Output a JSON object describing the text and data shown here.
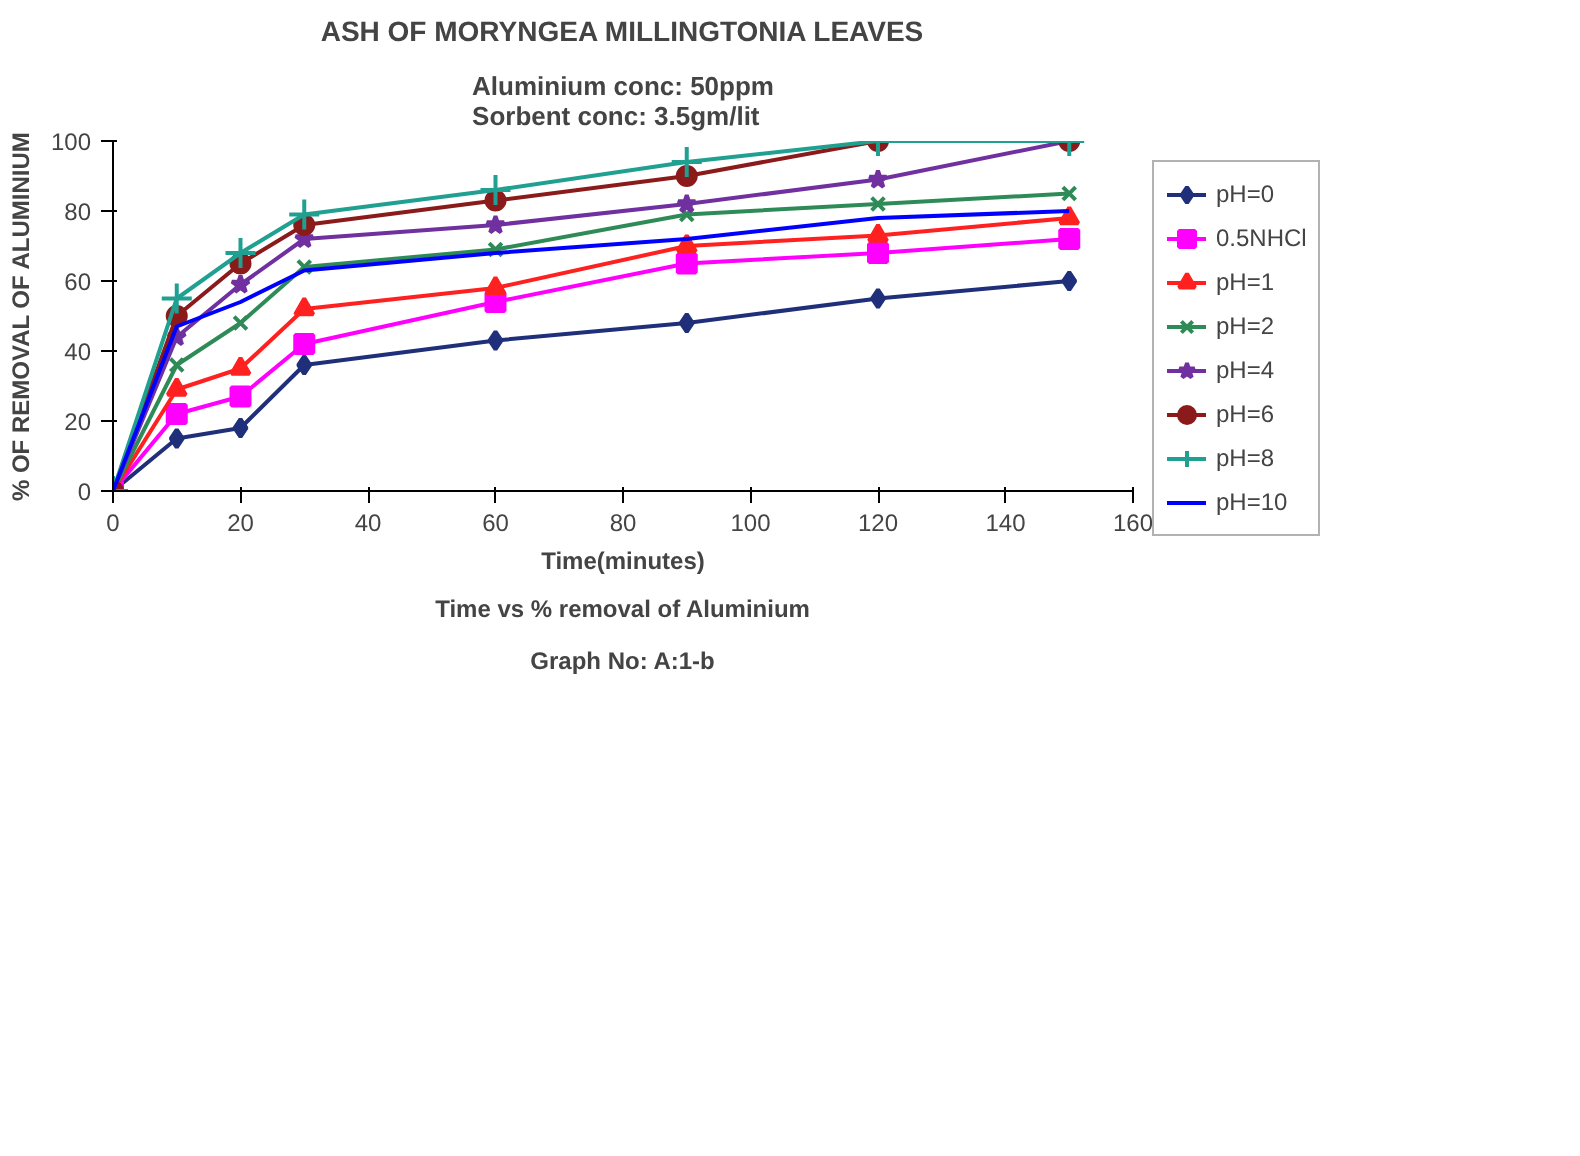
{
  "chart_data": {
    "type": "line",
    "title": "ASH OF MORYNGEA MILLINGTONIA LEAVES",
    "subtitle": "Aluminium conc: 50ppm\nSorbent conc: 3.5gm/lit",
    "xlabel": "Time(minutes)",
    "ylabel": "% OF REMOVAL OF ALUMINIUM",
    "annotations": [
      "Time vs % removal of Aluminium",
      "Graph No: A:1-b"
    ],
    "x": [
      0,
      10,
      20,
      30,
      60,
      90,
      120,
      150
    ],
    "xlim": [
      0,
      160
    ],
    "xticks": [
      0,
      20,
      40,
      60,
      80,
      100,
      120,
      140,
      160
    ],
    "ylim": [
      0,
      100
    ],
    "yticks": [
      0,
      20,
      40,
      60,
      80,
      100
    ],
    "grid": false,
    "legend": "right",
    "series": [
      {
        "name": "pH=0",
        "color": "#1f2f7a",
        "marker": "diamond",
        "values": [
          0,
          15,
          18,
          36,
          43,
          48,
          55,
          60
        ]
      },
      {
        "name": "0.5NHCl",
        "color": "#ff00ff",
        "marker": "square",
        "values": [
          0,
          22,
          27,
          42,
          54,
          65,
          68,
          72
        ]
      },
      {
        "name": "pH=1",
        "color": "#ff2020",
        "marker": "triangle",
        "values": [
          0,
          29,
          35,
          52,
          58,
          70,
          73,
          78
        ]
      },
      {
        "name": "pH=2",
        "color": "#2e8b57",
        "marker": "cross",
        "values": [
          0,
          36,
          48,
          64,
          69,
          79,
          82,
          85
        ]
      },
      {
        "name": "pH=4",
        "color": "#7030a0",
        "marker": "star",
        "values": [
          0,
          44,
          59,
          72,
          76,
          82,
          89,
          100
        ]
      },
      {
        "name": "pH=6",
        "color": "#8b1a1a",
        "marker": "circle",
        "values": [
          0,
          50,
          65,
          76,
          83,
          90,
          100,
          100
        ]
      },
      {
        "name": "pH=8",
        "color": "#20a090",
        "marker": "plus",
        "values": [
          0,
          55,
          68,
          79,
          86,
          94,
          100,
          100
        ]
      },
      {
        "name": "pH=10",
        "color": "#0000ff",
        "marker": "none",
        "values": [
          0,
          47,
          54,
          63,
          68,
          72,
          78,
          80
        ]
      }
    ]
  }
}
